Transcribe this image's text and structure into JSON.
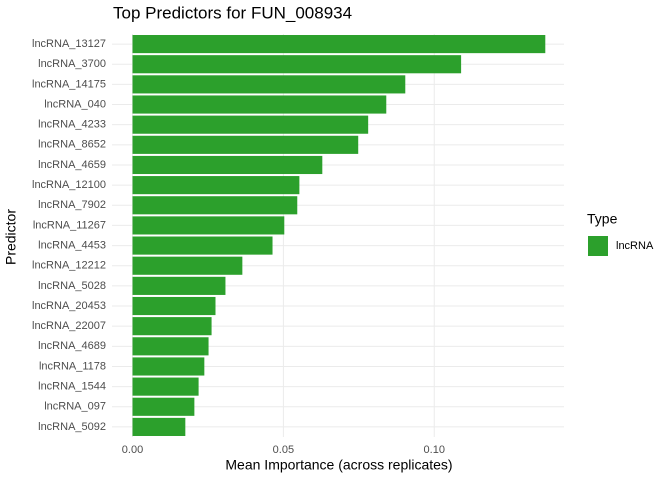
{
  "chart_data": {
    "type": "barh",
    "title": "Top Predictors for FUN_008934",
    "x_label": "Mean Importance (across replicates)",
    "y_label": "Predictor",
    "legend_title": "Type",
    "categories": [
      "lncRNA_13127",
      "lncRNA_3700",
      "lncRNA_14175",
      "lncRNA_040",
      "lncRNA_4233",
      "lncRNA_8652",
      "lncRNA_4659",
      "lncRNA_12100",
      "lncRNA_7902",
      "lncRNA_11267",
      "lncRNA_4453",
      "lncRNA_12212",
      "lncRNA_5028",
      "lncRNA_20453",
      "lncRNA_22007",
      "lncRNA_4689",
      "lncRNA_1178",
      "lncRNA_1544",
      "lncRNA_097",
      "lncRNA_5092"
    ],
    "series": [
      {
        "name": "lncRNA",
        "color": "#2ca02c",
        "values": [
          0.1368,
          0.1089,
          0.0904,
          0.0841,
          0.0781,
          0.0748,
          0.0629,
          0.0553,
          0.0546,
          0.0503,
          0.0464,
          0.0364,
          0.0308,
          0.0275,
          0.0262,
          0.0252,
          0.0238,
          0.0219,
          0.0205,
          0.0175
        ]
      }
    ],
    "xlim": [
      -0.0068,
      0.143
    ],
    "xticks": [
      {
        "value": 0,
        "label": "0.00"
      },
      0.05,
      {
        "value": 0.1,
        "label": "0.10"
      }
    ],
    "grid": true
  }
}
